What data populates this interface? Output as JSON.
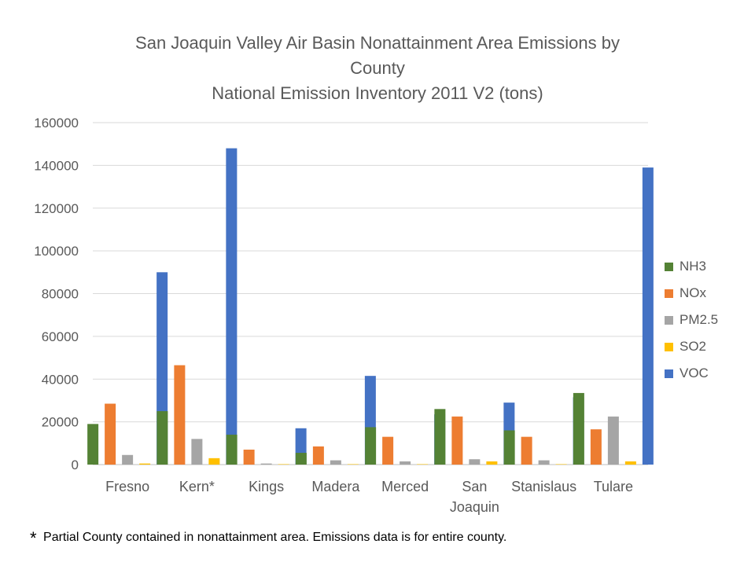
{
  "chart_data": {
    "type": "bar",
    "title": "San Joaquin Valley Air Basin Nonattainment Area Emissions by County",
    "subtitle": "National Emission Inventory 2011 V2 (tons)",
    "categories": [
      "Fresno",
      "Kern*",
      "Kings",
      "Madera",
      "Merced",
      "San Joaquin",
      "Stanislaus",
      "Tulare"
    ],
    "series": [
      {
        "name": "NH3",
        "color": "#548235",
        "values": [
          19000,
          25000,
          14000,
          5500,
          17500,
          26000,
          16000,
          33500
        ]
      },
      {
        "name": "NOx",
        "color": "#ED7D31",
        "values": [
          28500,
          46500,
          7000,
          8500,
          13000,
          22500,
          13000,
          16500
        ]
      },
      {
        "name": "PM2.5",
        "color": "#A5A5A5",
        "values": [
          4500,
          12000,
          500,
          2000,
          1500,
          2500,
          2000,
          22500
        ]
      },
      {
        "name": "SO2",
        "color": "#FFC000",
        "values": [
          500,
          3000,
          200,
          200,
          200,
          1500,
          200,
          1500
        ]
      },
      {
        "name": "VOC",
        "color": "#4472C4",
        "values": [
          90000,
          148000,
          17000,
          41500,
          23500,
          29000,
          31500,
          139000
        ]
      }
    ],
    "ylim": [
      0,
      160000
    ],
    "yticks": [
      0,
      20000,
      40000,
      60000,
      80000,
      100000,
      120000,
      140000,
      160000
    ],
    "grid": true,
    "legend_position": "right"
  },
  "title_lines": [
    "San Joaquin Valley Air Basin Nonattainment Area Emissions by",
    "County",
    "National Emission Inventory 2011 V2 (tons)"
  ],
  "category_label_lines": [
    [
      "Fresno"
    ],
    [
      "Kern*"
    ],
    [
      "Kings"
    ],
    [
      "Madera"
    ],
    [
      "Merced"
    ],
    [
      "San",
      "Joaquin"
    ],
    [
      "Stanislaus"
    ],
    [
      "Tulare"
    ]
  ],
  "footnote": {
    "marker": "*",
    "text": "Partial County contained in nonattainment area.  Emissions data is for entire county."
  }
}
